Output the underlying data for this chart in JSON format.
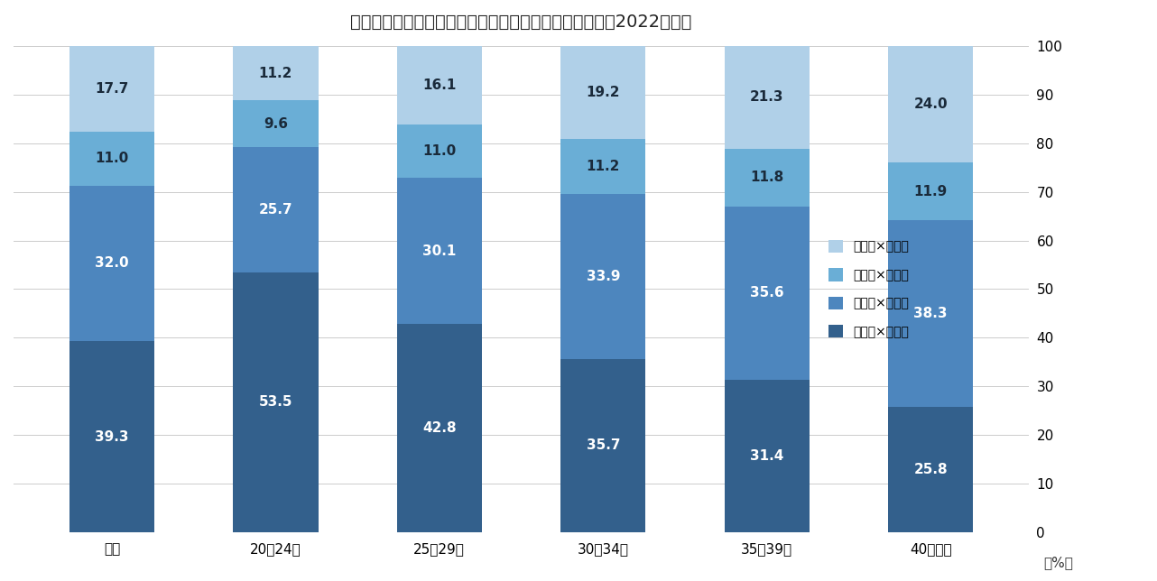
{
  "title": "【年齢別】転職時の業種・職種異同のパターン別割合（2022年度）",
  "categories": [
    "全体",
    "20〜24歳",
    "25〜29歳",
    "30〜34歳",
    "35〜39歳",
    "40歳以上"
  ],
  "series": [
    {
      "label": "異業種×異職種",
      "values": [
        39.3,
        53.5,
        42.8,
        35.7,
        31.4,
        25.8
      ],
      "color": "#33608c"
    },
    {
      "label": "異業種×同職種",
      "values": [
        32.0,
        25.7,
        30.1,
        33.9,
        35.6,
        38.3
      ],
      "color": "#4d86be"
    },
    {
      "label": "同業種×異職種",
      "values": [
        11.0,
        9.6,
        11.0,
        11.2,
        11.8,
        11.9
      ],
      "color": "#6aaed6"
    },
    {
      "label": "同業種×同職種",
      "values": [
        17.7,
        11.2,
        16.1,
        19.2,
        21.3,
        24.0
      ],
      "color": "#b0d0e8"
    }
  ],
  "ylabel": "（%）",
  "ylim": [
    0,
    100
  ],
  "yticks": [
    0,
    10,
    20,
    30,
    40,
    50,
    60,
    70,
    80,
    90,
    100
  ],
  "background_color": "#ffffff",
  "title_fontsize": 14,
  "tick_fontsize": 11,
  "label_fontsize": 11,
  "bar_width": 0.52,
  "legend_labels_top_to_bottom": [
    "同業種×同職種",
    "同業種×異職種",
    "異業種×同職種",
    "異業種×異職種"
  ]
}
